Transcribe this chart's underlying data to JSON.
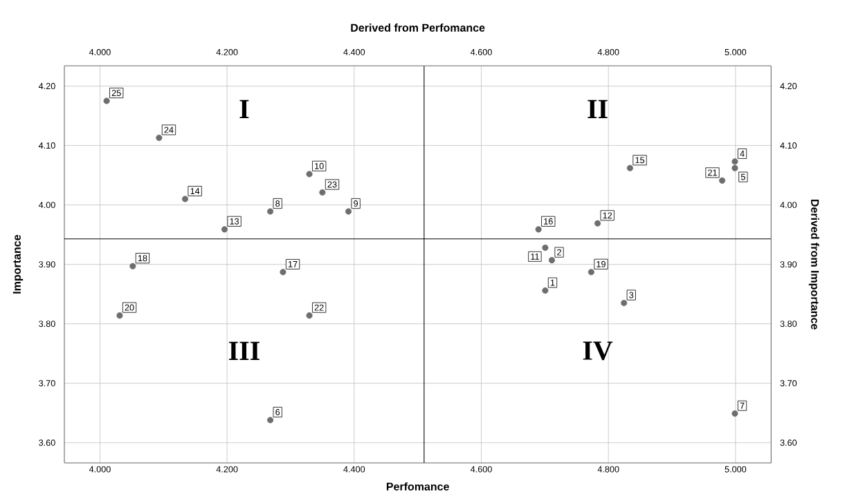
{
  "chart_data": {
    "type": "scatter",
    "xlabel": "Perfomance",
    "ylabel": "Importance",
    "x2label": "Derived from Perfomance",
    "y2label": "Derived from Importance",
    "x": [
      4.7006,
      4.711,
      4.8245,
      4.999,
      4.999,
      4.268,
      4.999,
      4.268,
      4.391,
      4.3295,
      4.7006,
      4.783,
      4.196,
      4.134,
      4.834,
      4.69,
      4.288,
      4.0516,
      4.773,
      4.031,
      4.979,
      4.3295,
      4.35,
      4.093,
      4.0105
    ],
    "values": [
      3.856,
      3.907,
      3.835,
      4.073,
      4.062,
      3.638,
      3.649,
      3.989,
      3.989,
      4.052,
      3.928,
      3.969,
      3.959,
      4.01,
      4.062,
      3.959,
      3.887,
      3.897,
      3.887,
      3.814,
      4.041,
      3.814,
      4.021,
      4.113,
      4.175
    ],
    "color": "#6e6e6e",
    "marker": "circle",
    "grid": true,
    "xlim": [
      3.944,
      5.056
    ],
    "ylim": [
      3.566,
      4.234
    ],
    "xticks": [
      {
        "value": 4.0,
        "label": "4.000"
      },
      {
        "value": 4.2,
        "label": "4.200"
      },
      {
        "value": 4.4,
        "label": "4.400"
      },
      {
        "value": 4.6,
        "label": "4.600"
      },
      {
        "value": 4.8,
        "label": "4.800"
      },
      {
        "value": 5.0,
        "label": "5.000"
      }
    ],
    "yticks": [
      {
        "value": 3.6,
        "label": "3.60"
      },
      {
        "value": 3.7,
        "label": "3.70"
      },
      {
        "value": 3.8,
        "label": "3.80"
      },
      {
        "value": 3.9,
        "label": "3.90"
      },
      {
        "value": 4.0,
        "label": "4.00"
      },
      {
        "value": 4.1,
        "label": "4.10"
      },
      {
        "value": 4.2,
        "label": "4.20"
      }
    ],
    "x2lim": [
      3.944,
      5.056
    ],
    "y2lim": [
      3.566,
      4.234
    ],
    "x2ticks": [
      {
        "value": 4.0,
        "label": "4.000"
      },
      {
        "value": 4.2,
        "label": "4.200"
      },
      {
        "value": 4.4,
        "label": "4.400"
      },
      {
        "value": 4.6,
        "label": "4.600"
      },
      {
        "value": 4.8,
        "label": "4.800"
      },
      {
        "value": 5.0,
        "label": "5.000"
      }
    ],
    "y2ticks": [
      {
        "value": 3.6,
        "label": "3.60"
      },
      {
        "value": 3.7,
        "label": "3.70"
      },
      {
        "value": 3.8,
        "label": "3.80"
      },
      {
        "value": 3.9,
        "label": "3.90"
      },
      {
        "value": 4.0,
        "label": "4.00"
      },
      {
        "value": 4.1,
        "label": "4.10"
      },
      {
        "value": 4.2,
        "label": "4.20"
      }
    ],
    "ref_lines": [
      {
        "axis": "x",
        "value": 4.51,
        "color": "#000000"
      },
      {
        "axis": "y",
        "value": 3.943,
        "color": "#000000"
      }
    ],
    "annotations": [
      {
        "text": "1",
        "x": 4.7006,
        "y": 3.856
      },
      {
        "text": "2",
        "x": 4.711,
        "y": 3.907
      },
      {
        "text": "3",
        "x": 4.8245,
        "y": 3.835
      },
      {
        "text": "4",
        "x": 4.999,
        "y": 4.073
      },
      {
        "text": "5",
        "x": 4.999,
        "y": 4.062
      },
      {
        "text": "6",
        "x": 4.268,
        "y": 3.638
      },
      {
        "text": "7",
        "x": 4.999,
        "y": 3.649
      },
      {
        "text": "8",
        "x": 4.268,
        "y": 3.989
      },
      {
        "text": "9",
        "x": 4.391,
        "y": 3.989
      },
      {
        "text": "10",
        "x": 4.3295,
        "y": 4.052
      },
      {
        "text": "11",
        "x": 4.7006,
        "y": 3.928
      },
      {
        "text": "12",
        "x": 4.783,
        "y": 3.969
      },
      {
        "text": "13",
        "x": 4.196,
        "y": 3.959
      },
      {
        "text": "14",
        "x": 4.134,
        "y": 4.01
      },
      {
        "text": "15",
        "x": 4.834,
        "y": 4.062
      },
      {
        "text": "16",
        "x": 4.69,
        "y": 3.959
      },
      {
        "text": "17",
        "x": 4.288,
        "y": 3.887
      },
      {
        "text": "18",
        "x": 4.0516,
        "y": 3.897
      },
      {
        "text": "19",
        "x": 4.773,
        "y": 3.887
      },
      {
        "text": "20",
        "x": 4.031,
        "y": 3.814
      },
      {
        "text": "21",
        "x": 4.979,
        "y": 4.041
      },
      {
        "text": "22",
        "x": 4.3295,
        "y": 3.814
      },
      {
        "text": "23",
        "x": 4.35,
        "y": 4.021
      },
      {
        "text": "24",
        "x": 4.093,
        "y": 4.113
      },
      {
        "text": "25",
        "x": 4.0105,
        "y": 4.175
      },
      "I",
      "II",
      "III",
      "IV"
    ]
  }
}
